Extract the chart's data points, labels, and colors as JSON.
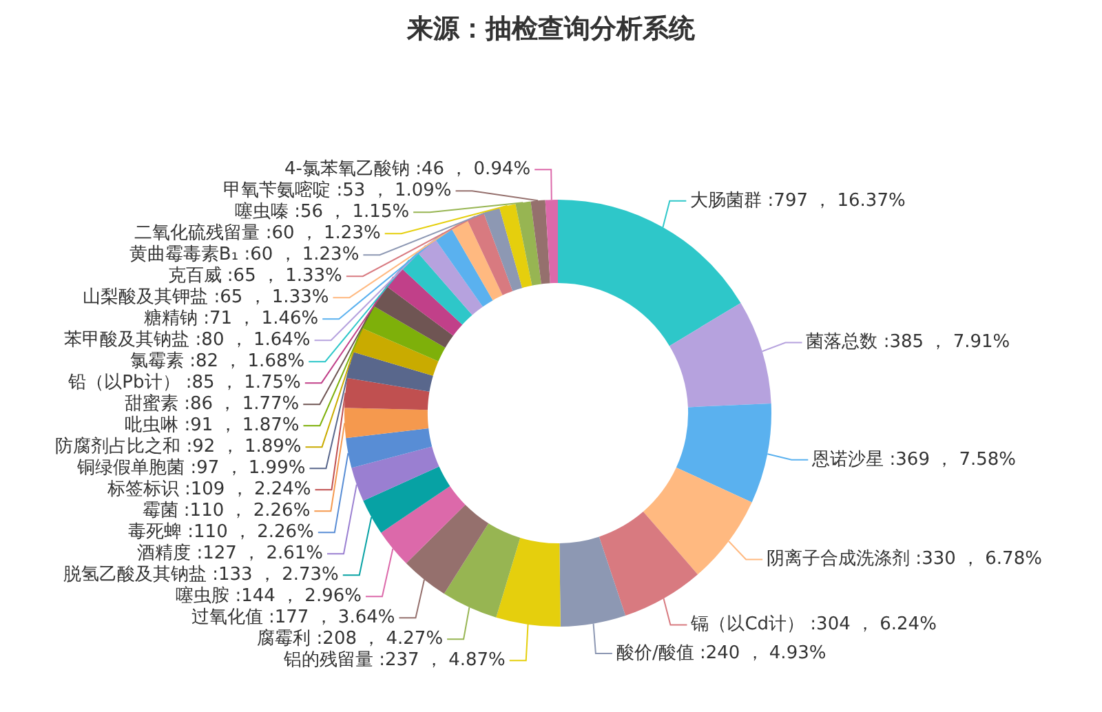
{
  "chart_data": {
    "type": "donut",
    "title": "来源：抽检查询分析系统",
    "categories": [
      "大肠菌群",
      "菌落总数",
      "恩诺沙星",
      "阴离子合成洗涤剂",
      "镉（以Cd计）",
      "酸价/酸值",
      "铝的残留量",
      "腐霉利",
      "过氧化值",
      "噻虫胺",
      "脱氢乙酸及其钠盐",
      "酒精度",
      "毒死蜱",
      "霉菌",
      "标签标识",
      "铜绿假单胞菌",
      "防腐剂占比之和",
      "吡虫啉",
      "甜蜜素",
      "铅（以Pb计）",
      "氯霉素",
      "苯甲酸及其钠盐",
      "糖精钠",
      "山梨酸及其钾盐",
      "克百威",
      "黄曲霉毒素B₁",
      "二氧化硫残留量",
      "噻虫嗪",
      "甲氧苄氨嘧啶",
      "4-氯苯氧乙酸钠"
    ],
    "values": [
      797,
      385,
      369,
      330,
      304,
      240,
      237,
      208,
      177,
      144,
      133,
      127,
      110,
      110,
      109,
      97,
      92,
      91,
      86,
      85,
      82,
      80,
      71,
      65,
      65,
      60,
      60,
      56,
      53,
      46
    ],
    "value_labels": [
      ":797 ， 16.37%",
      ":385 ， 7.91%",
      ":369 ， 7.58%",
      ":330 ， 6.78%",
      ":304 ， 6.24%",
      ":240 ， 4.93%",
      ":237 ， 4.87%",
      ":208 ， 4.27%",
      ":177 ， 3.64%",
      ":144 ， 2.96%",
      ":133 ， 2.73%",
      ":127 ， 2.61%",
      ":110 ， 2.26%",
      ":110 ， 2.26%",
      ":109 ， 2.24%",
      ":97 ， 1.99%",
      ":92 ， 1.89%",
      ":91 ， 1.87%",
      ":86 ， 1.77%",
      ":85 ， 1.75%",
      ":82 ， 1.68%",
      ":80 ， 1.64%",
      ":71 ， 1.46%",
      ":65 ， 1.33%",
      ":65 ， 1.33%",
      ":60 ， 1.23%",
      ":60 ， 1.23%",
      ":56 ， 1.15%",
      ":53 ， 1.09%",
      ":46 ， 0.94%"
    ],
    "colors": [
      "#2ec7c9",
      "#b6a2de",
      "#5ab1ef",
      "#ffb980",
      "#d87a80",
      "#8d98b3",
      "#e5cf0d",
      "#97b552",
      "#95706d",
      "#dc69aa",
      "#07a2a4",
      "#9a7fd1",
      "#588dd5",
      "#f5994e",
      "#c05050",
      "#59678c",
      "#c9ab00",
      "#7eb00a",
      "#6f5553",
      "#c14089",
      "#2ec7c9",
      "#b6a2de",
      "#5ab1ef",
      "#ffb980",
      "#d87a80",
      "#8d98b3",
      "#e5cf0d",
      "#97b552",
      "#95706d",
      "#dc69aa"
    ]
  }
}
